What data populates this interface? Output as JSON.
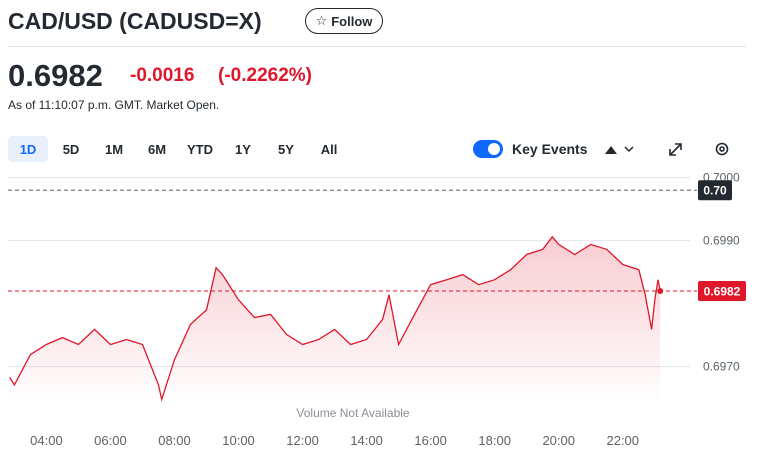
{
  "header": {
    "title": "CAD/USD (CADUSD=X)",
    "follow": "Follow",
    "price": "0.6982",
    "change": "-0.0016",
    "change_percent": "(-0.2262%)",
    "as_of": "As of 11:10:07 p.m. GMT. Market Open."
  },
  "toolbar": {
    "ranges": [
      "1D",
      "5D",
      "1M",
      "6M",
      "YTD",
      "1Y",
      "5Y",
      "All"
    ],
    "key_events": "Key Events"
  },
  "chart_data": {
    "type": "line",
    "color": "#e0162b",
    "note": "Volume Not Available",
    "x": [
      2.85,
      3.0,
      3.5,
      4.0,
      4.5,
      5.0,
      5.5,
      6.0,
      6.5,
      7.0,
      7.5,
      7.6,
      8.0,
      8.5,
      9.0,
      9.3,
      9.5,
      10.0,
      10.5,
      11.0,
      11.5,
      12.0,
      12.5,
      13.0,
      13.5,
      14.0,
      14.5,
      14.7,
      15.0,
      15.5,
      16.0,
      16.5,
      17.0,
      17.5,
      18.0,
      18.5,
      19.0,
      19.5,
      19.8,
      20.0,
      20.5,
      21.0,
      21.5,
      22.0,
      22.5,
      22.7,
      22.9,
      23.0,
      23.1,
      23.17
    ],
    "values": [
      0.69683,
      0.69671,
      0.69719,
      0.69735,
      0.69746,
      0.69735,
      0.69759,
      0.69735,
      0.69743,
      0.69735,
      0.69671,
      0.69648,
      0.69711,
      0.69767,
      0.6979,
      0.69857,
      0.69846,
      0.69806,
      0.69778,
      0.69783,
      0.69751,
      0.69735,
      0.69743,
      0.69759,
      0.69735,
      0.69743,
      0.69775,
      0.69814,
      0.69735,
      0.69783,
      0.6983,
      0.69838,
      0.69846,
      0.6983,
      0.69838,
      0.69854,
      0.69878,
      0.69886,
      0.69906,
      0.69894,
      0.69878,
      0.69894,
      0.69886,
      0.69862,
      0.69854,
      0.69814,
      0.69759,
      0.69806,
      0.69838,
      0.6982
    ],
    "xlim": [
      2.8,
      24.1
    ],
    "xticks": [
      {
        "value": 4,
        "label": "04:00"
      },
      {
        "value": 6,
        "label": "06:00"
      },
      {
        "value": 8,
        "label": "08:00"
      },
      {
        "value": 10,
        "label": "10:00"
      },
      {
        "value": 12,
        "label": "12:00"
      },
      {
        "value": 14,
        "label": "14:00"
      },
      {
        "value": 16,
        "label": "16:00"
      },
      {
        "value": 18,
        "label": "18:00"
      },
      {
        "value": 20,
        "label": "20:00"
      },
      {
        "value": 22,
        "label": "22:00"
      }
    ],
    "ylim": [
      0.6964,
      0.7002
    ],
    "yticks": [
      {
        "value": 0.697,
        "label": "0.6970"
      },
      {
        "value": 0.699,
        "label": "0.6990"
      },
      {
        "value": 0.7,
        "label": "0.7000"
      }
    ],
    "grid": true,
    "previous_close": {
      "value": 0.6998,
      "label": "0.70"
    },
    "current": 0.6982
  }
}
